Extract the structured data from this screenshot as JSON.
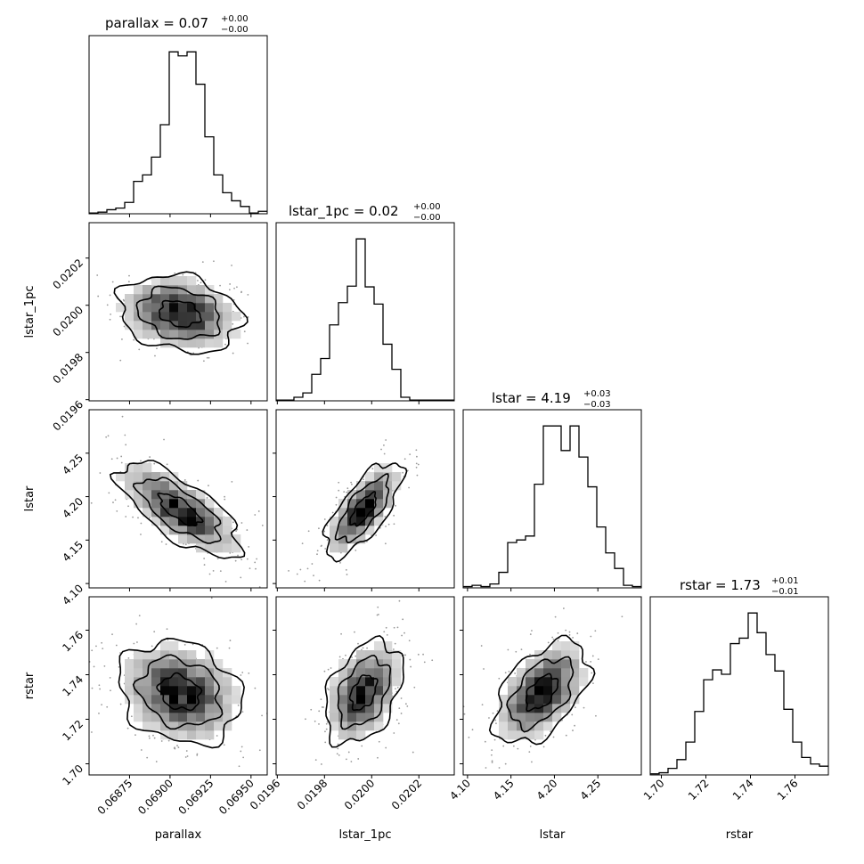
{
  "chart_data": {
    "type": "corner",
    "parameters": [
      {
        "name": "parallax",
        "label": "parallax",
        "median": "0.07",
        "plus": "+0.00",
        "minus": "−0.00",
        "range": [
          0.0685,
          0.0696
        ],
        "ticks": [
          0.06875,
          0.069,
          0.06925,
          0.0695
        ],
        "tick_labels": [
          "0.06875",
          "0.06900",
          "0.06925",
          "0.06950"
        ]
      },
      {
        "name": "lstar_1pc",
        "label": "lstar_1pc",
        "median": "0.02",
        "plus": "+0.00",
        "minus": "−0.00",
        "range": [
          0.019595,
          0.02035
        ],
        "ticks": [
          0.0196,
          0.0198,
          0.02,
          0.0202
        ],
        "tick_labels": [
          "0.0196",
          "0.0198",
          "0.0200",
          "0.0202"
        ]
      },
      {
        "name": "lstar",
        "label": "lstar",
        "median": "4.19",
        "plus": "+0.03",
        "minus": "−0.03",
        "range": [
          4.095,
          4.3
        ],
        "ticks": [
          4.1,
          4.15,
          4.2,
          4.25
        ],
        "tick_labels": [
          "4.10",
          "4.15",
          "4.20",
          "4.25"
        ]
      },
      {
        "name": "rstar",
        "label": "rstar",
        "median": "1.73",
        "plus": "+0.01",
        "minus": "−0.01",
        "range": [
          1.695,
          1.775
        ],
        "ticks": [
          1.7,
          1.72,
          1.74,
          1.76
        ],
        "tick_labels": [
          "1.70",
          "1.72",
          "1.74",
          "1.76"
        ]
      }
    ],
    "histograms": [
      [
        1,
        2,
        5,
        7,
        14,
        40,
        48,
        70,
        110,
        200,
        195,
        200,
        160,
        95,
        48,
        26,
        16,
        9,
        1,
        3
      ],
      [
        1,
        1,
        5,
        11,
        37,
        59,
        106,
        137,
        160,
        226,
        159,
        135,
        79,
        44,
        5,
        1,
        1,
        1,
        1,
        1
      ],
      [
        1,
        2,
        1,
        3,
        12,
        35,
        37,
        40,
        80,
        125,
        125,
        106,
        125,
        101,
        78,
        47,
        27,
        15,
        2,
        1
      ],
      [
        1,
        2,
        6,
        14,
        30,
        58,
        87,
        96,
        92,
        120,
        125,
        148,
        130,
        110,
        95,
        60,
        30,
        16,
        10,
        8
      ]
    ],
    "correlations": {
      "1,0": -0.2,
      "2,0": -0.72,
      "2,1": 0.72,
      "3,0": -0.2,
      "3,1": 0.38,
      "3,2": 0.5
    }
  }
}
